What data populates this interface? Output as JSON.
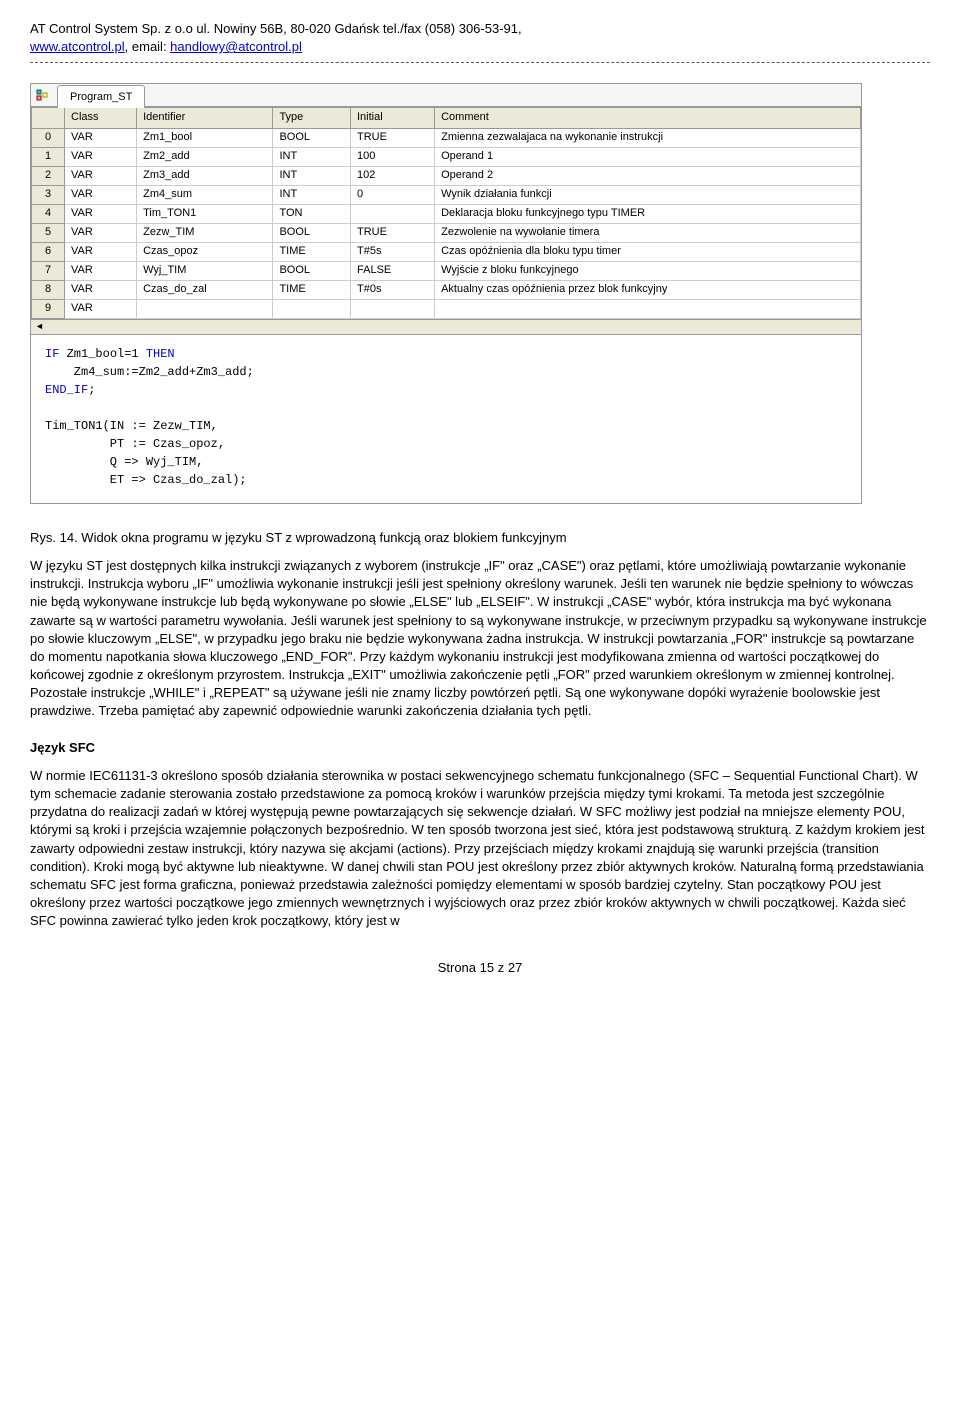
{
  "header": {
    "company_line": "AT Control System Sp. z o.o ul. Nowiny 56B, 80-020 Gdańsk tel./fax (058) 306-53-91,",
    "site": "www.atcontrol.pl",
    "email_label": ", email: ",
    "email": "handlowy@atcontrol.pl"
  },
  "screenshot": {
    "tab_label": "Program_ST",
    "columns": [
      "Class",
      "Identifier",
      "Type",
      "Initial",
      "Comment"
    ],
    "rows": [
      {
        "n": "0",
        "class": "VAR",
        "id": "Zm1_bool",
        "type": "BOOL",
        "init": "TRUE",
        "comment": "Zmienna zezwalajaca na wykonanie instrukcji"
      },
      {
        "n": "1",
        "class": "VAR",
        "id": "Zm2_add",
        "type": "INT",
        "init": "100",
        "comment": "Operand 1"
      },
      {
        "n": "2",
        "class": "VAR",
        "id": "Zm3_add",
        "type": "INT",
        "init": "102",
        "comment": "Operand 2"
      },
      {
        "n": "3",
        "class": "VAR",
        "id": "Zm4_sum",
        "type": "INT",
        "init": "0",
        "comment": "Wynik działania funkcji"
      },
      {
        "n": "4",
        "class": "VAR",
        "id": "Tim_TON1",
        "type": "TON",
        "init": "",
        "comment": "Deklaracja bloku funkcyjnego typu TIMER"
      },
      {
        "n": "5",
        "class": "VAR",
        "id": "Zezw_TIM",
        "type": "BOOL",
        "init": "TRUE",
        "comment": "Zezwolenie na wywołanie timera"
      },
      {
        "n": "6",
        "class": "VAR",
        "id": "Czas_opoz",
        "type": "TIME",
        "init": "T#5s",
        "comment": "Czas opóźnienia dla bloku typu timer"
      },
      {
        "n": "7",
        "class": "VAR",
        "id": "Wyj_TIM",
        "type": "BOOL",
        "init": "FALSE",
        "comment": "Wyjście z bloku funkcyjnego"
      },
      {
        "n": "8",
        "class": "VAR",
        "id": "Czas_do_zal",
        "type": "TIME",
        "init": "T#0s",
        "comment": "Aktualny czas opóźnienia przez blok funkcyjny"
      },
      {
        "n": "9",
        "class": "VAR",
        "id": "",
        "type": "",
        "init": "",
        "comment": ""
      }
    ],
    "code_lines": [
      {
        "t": "IF",
        "k": true
      },
      {
        "t": " Zm1_bool=1 ",
        "k": false
      },
      {
        "t": "THEN",
        "k": true
      },
      {
        "t": "\n",
        "k": false
      },
      {
        "t": "    Zm4_sum:=Zm2_add+Zm3_add;\n",
        "k": false
      },
      {
        "t": "END_IF",
        "k": true
      },
      {
        "t": ";\n\n",
        "k": false
      },
      {
        "t": "Tim_TON1(IN := Zezw_TIM,\n",
        "k": false
      },
      {
        "t": "         PT := Czas_opoz,\n",
        "k": false
      },
      {
        "t": "         Q => Wyj_TIM,\n",
        "k": false
      },
      {
        "t": "         ET => Czas_do_zal);",
        "k": false
      }
    ]
  },
  "caption": "Rys. 14. Widok okna programu w języku ST z wprowadzoną funkcją oraz blokiem funkcyjnym",
  "body_para_1": "W języku ST jest dostępnych kilka instrukcji związanych z wyborem (instrukcje „IF\" oraz „CASE\") oraz pętlami, które umożliwiają powtarzanie wykonanie instrukcji. Instrukcja wyboru „IF\" umożliwia wykonanie instrukcji jeśli jest spełniony określony warunek. Jeśli ten warunek nie będzie spełniony to wówczas nie będą wykonywane instrukcje lub będą wykonywane po słowie „ELSE\" lub „ELSEIF\". W instrukcji „CASE\" wybór, która instrukcja ma być wykonana zawarte są w wartości parametru wywołania. Jeśli warunek jest spełniony to są wykonywane instrukcje, w przeciwnym przypadku są wykonywane instrukcje po słowie kluczowym „ELSE\", w przypadku jego braku nie będzie wykonywana żadna instrukcja. W instrukcji powtarzania „FOR\" instrukcje są powtarzane do momentu napotkania słowa kluczowego „END_FOR\". Przy każdym wykonaniu instrukcji jest modyfikowana zmienna od wartości początkowej do końcowej zgodnie z określonym przyrostem. Instrukcja „EXIT\" umożliwia zakończenie pętli „FOR\" przed warunkiem określonym w zmiennej kontrolnej. Pozostałe instrukcje „WHILE\" i „REPEAT\" są używane jeśli nie znamy liczby powtórzeń pętli. Są one wykonywane dopóki wyrażenie boolowskie jest prawdziwe. Trzeba pamiętać aby zapewnić odpowiednie warunki zakończenia działania tych pętli.",
  "section_heading": "Język SFC",
  "body_para_2": "W normie IEC61131-3 określono sposób działania sterownika w postaci sekwencyjnego schematu funkcjonalnego (SFC – Sequential Functional Chart). W tym schemacie zadanie sterowania zostało przedstawione za pomocą kroków i warunków przejścia między tymi krokami. Ta metoda jest szczególnie przydatna do realizacji zadań w której występują pewne powtarzających się sekwencje działań. W SFC możliwy jest podział na mniejsze elementy POU, którymi są kroki i przejścia wzajemnie połączonych bezpośrednio. W ten sposób tworzona jest sieć, która jest podstawową strukturą. Z każdym krokiem jest zawarty odpowiedni zestaw instrukcji, który nazywa się akcjami (actions). Przy przejściach między krokami znajdują się warunki przejścia (transition condition). Kroki mogą być aktywne lub nieaktywne. W danej chwili stan POU jest określony przez zbiór aktywnych kroków. Naturalną formą przedstawiania schematu SFC jest forma graficzna, ponieważ przedstawia zależności pomiędzy elementami w sposób bardziej czytelny. Stan początkowy POU jest określony przez wartości początkowe jego zmiennych wewnętrznych i wyjściowych oraz przez zbiór kroków aktywnych w chwili początkowej. Każda sieć SFC powinna zawierać tylko jeden krok początkowy, który jest w",
  "footer": "Strona 15 z 27"
}
